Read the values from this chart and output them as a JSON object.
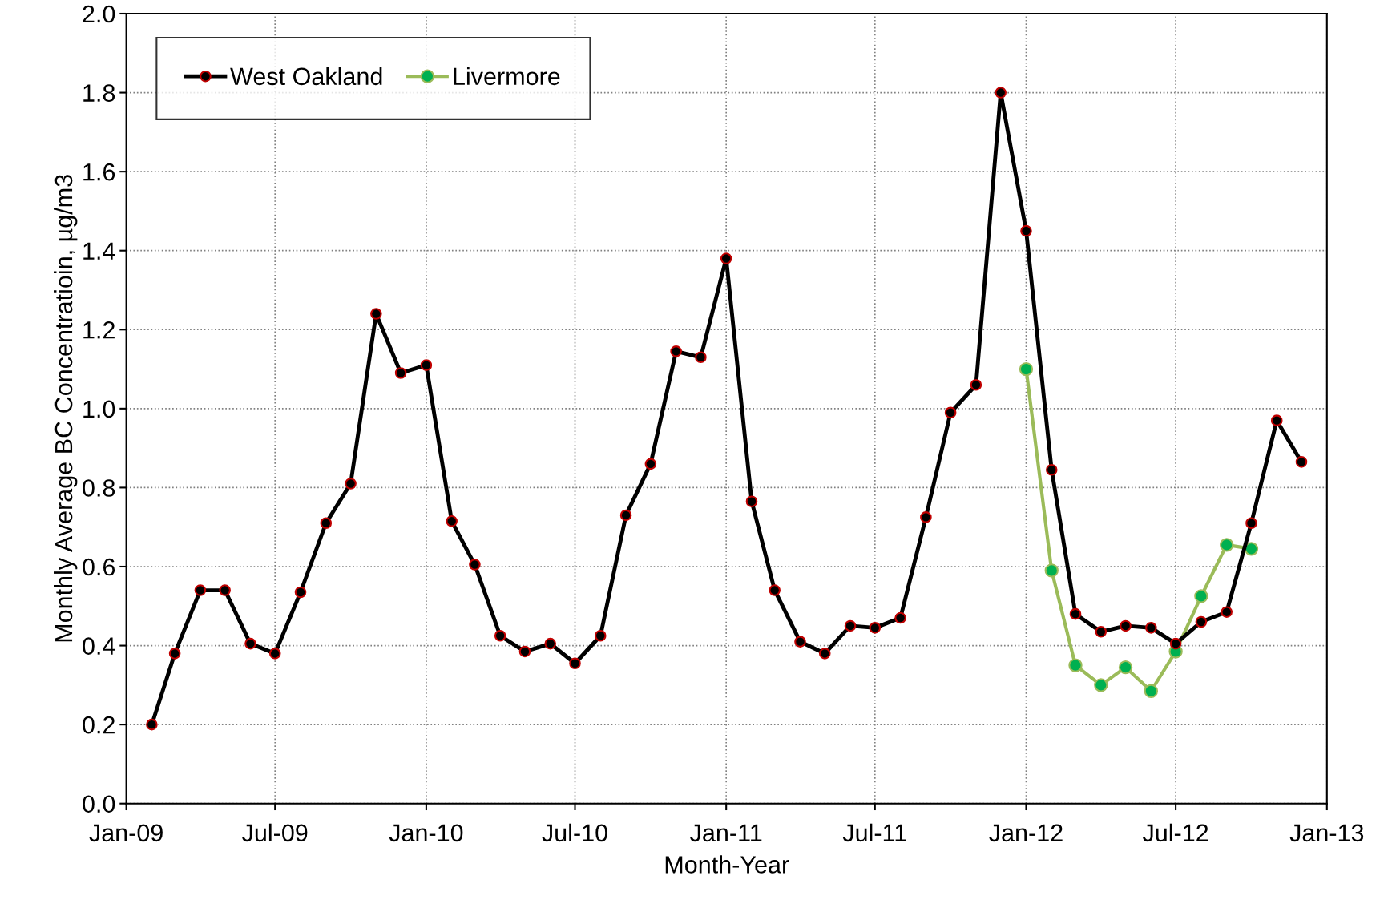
{
  "chart_data": {
    "type": "line",
    "xlabel": "Month-Year",
    "ylabel": "Monthly Average BC Concentratioin, µg/m3",
    "xlim": [
      "2009-01",
      "2013-01"
    ],
    "xticks": [
      {
        "value": "2009-01",
        "label": "Jan-09"
      },
      {
        "value": "2009-07",
        "label": "Jul-09"
      },
      {
        "value": "2010-01",
        "label": "Jan-10"
      },
      {
        "value": "2010-07",
        "label": "Jul-10"
      },
      {
        "value": "2011-01",
        "label": "Jan-11"
      },
      {
        "value": "2011-07",
        "label": "Jul-11"
      },
      {
        "value": "2012-01",
        "label": "Jan-12"
      },
      {
        "value": "2012-07",
        "label": "Jul-12"
      },
      {
        "value": "2013-01",
        "label": "Jan-13"
      }
    ],
    "ylim": [
      0,
      2.0
    ],
    "yticks": [
      {
        "value": 0,
        "label": "0.0"
      },
      {
        "value": 0.2,
        "label": "0.2"
      },
      {
        "value": 0.4,
        "label": "0.4"
      },
      {
        "value": 0.6,
        "label": "0.6"
      },
      {
        "value": 0.8,
        "label": "0.8"
      },
      {
        "value": 1.0,
        "label": "1.0"
      },
      {
        "value": 1.2,
        "label": "1.2"
      },
      {
        "value": 1.4,
        "label": "1.4"
      },
      {
        "value": 1.6,
        "label": "1.6"
      },
      {
        "value": 1.8,
        "label": "1.8"
      },
      {
        "value": 2.0,
        "label": "2.0"
      }
    ],
    "grid": true,
    "legend": "top left",
    "marker": "circle",
    "line_style": "solid",
    "series": [
      {
        "name": "West Oakland",
        "color": "#000000",
        "x": [
          "2009-02",
          "2009-03",
          "2009-04",
          "2009-05",
          "2009-06",
          "2009-07",
          "2009-08",
          "2009-09",
          "2009-10",
          "2009-11",
          "2009-12",
          "2010-01",
          "2010-02",
          "2010-03",
          "2010-04",
          "2010-05",
          "2010-06",
          "2010-07",
          "2010-08",
          "2010-09",
          "2010-10",
          "2010-11",
          "2010-12",
          "2011-01",
          "2011-02",
          "2011-03",
          "2011-04",
          "2011-05",
          "2011-06",
          "2011-07",
          "2011-08",
          "2011-09",
          "2011-10",
          "2011-11",
          "2011-12",
          "2012-01",
          "2012-02",
          "2012-03",
          "2012-04",
          "2012-05",
          "2012-06",
          "2012-07",
          "2012-08",
          "2012-09",
          "2012-10",
          "2012-11",
          "2012-12"
        ],
        "values": [
          0.2,
          0.38,
          0.54,
          0.54,
          0.405,
          0.38,
          0.535,
          0.71,
          0.81,
          1.24,
          1.09,
          1.11,
          0.715,
          0.605,
          0.425,
          0.385,
          0.405,
          0.355,
          0.425,
          0.73,
          0.86,
          1.145,
          1.13,
          1.38,
          0.765,
          0.54,
          0.41,
          0.38,
          0.45,
          0.445,
          0.47,
          0.725,
          0.99,
          1.06,
          1.8,
          1.45,
          0.845,
          0.48,
          0.435,
          0.45,
          0.445,
          0.405,
          0.46,
          0.485,
          0.71,
          0.97,
          0.865
        ]
      },
      {
        "name": "Livermore",
        "color": "#9bbb59",
        "x": [
          "2012-01",
          "2012-02",
          "2012-03",
          "2012-04",
          "2012-05",
          "2012-06",
          "2012-07",
          "2012-08",
          "2012-09",
          "2012-10"
        ],
        "values": [
          1.1,
          0.59,
          0.35,
          0.3,
          0.345,
          0.285,
          0.385,
          0.525,
          0.655,
          0.645
        ]
      }
    ]
  }
}
